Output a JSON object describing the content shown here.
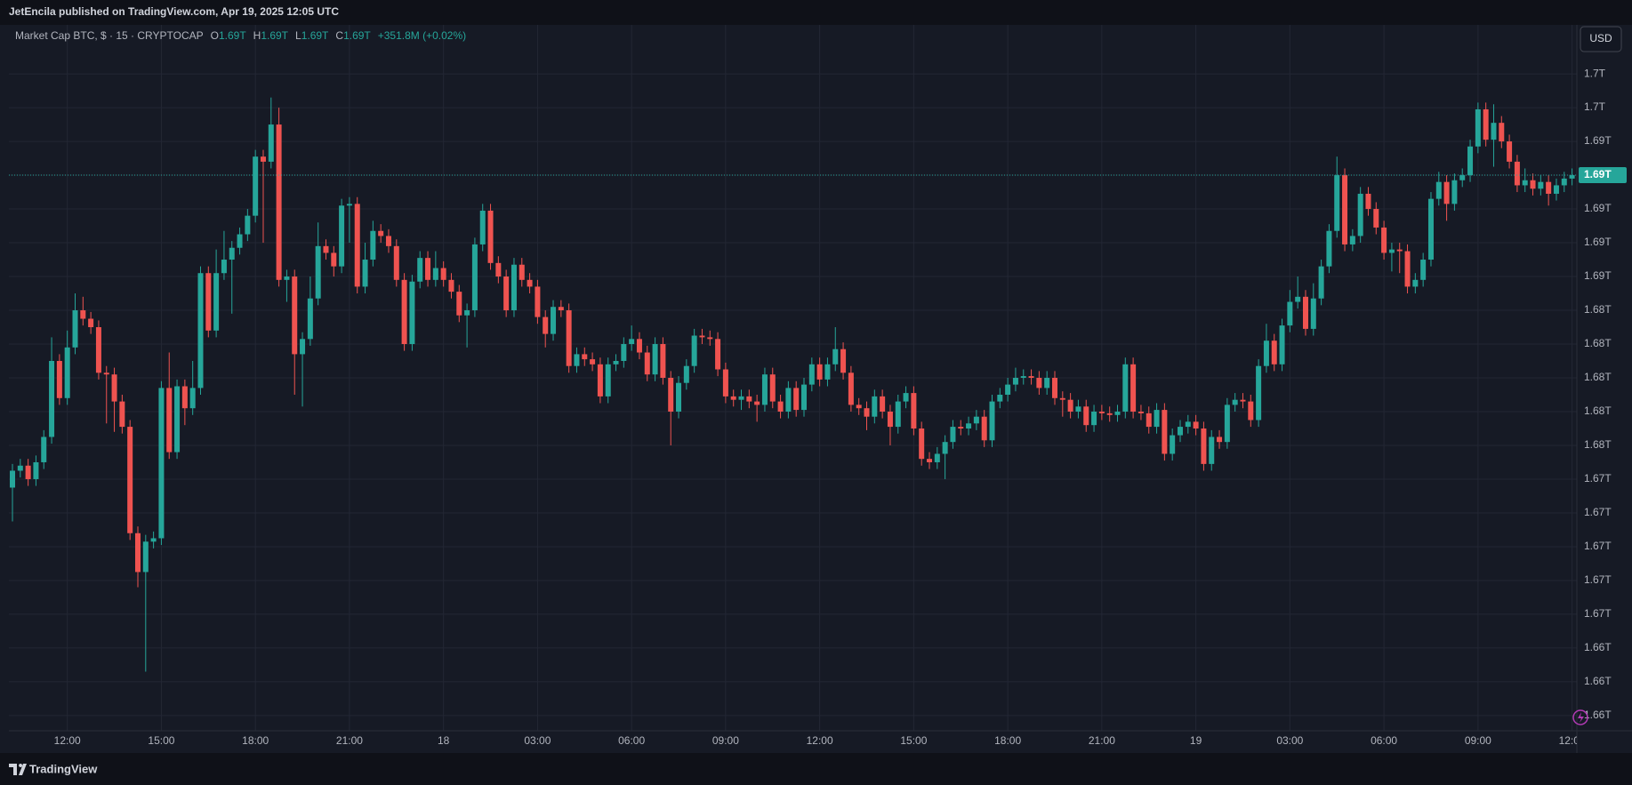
{
  "header": {
    "published": "JetEncila published on TradingView.com, Apr 19, 2025 12:05 UTC"
  },
  "footer": {
    "brand": "TradingView"
  },
  "chart_data": {
    "type": "candlestick",
    "legend": {
      "symbol": "Market Cap BTC, $ · 15 · CRYPTOCAP",
      "open_label": "O",
      "open": "1.69T",
      "high_label": "H",
      "high": "1.69T",
      "low_label": "L",
      "low": "1.69T",
      "close_label": "C",
      "close": "1.69T",
      "change": "+351.8M (+0.02%)"
    },
    "currency": "USD",
    "price_label": "1.69T",
    "up_color": "#26a69a",
    "down_color": "#ef5350",
    "grid": true,
    "ylim": [
      1.6591,
      1.7009
    ],
    "yticks": [
      {
        "value": 1.66,
        "label": "1.66T"
      },
      {
        "value": 1.662,
        "label": "1.66T"
      },
      {
        "value": 1.664,
        "label": "1.66T"
      },
      {
        "value": 1.666,
        "label": "1.67T"
      },
      {
        "value": 1.668,
        "label": "1.67T"
      },
      {
        "value": 1.67,
        "label": "1.67T"
      },
      {
        "value": 1.672,
        "label": "1.67T"
      },
      {
        "value": 1.674,
        "label": "1.67T"
      },
      {
        "value": 1.676,
        "label": "1.68T"
      },
      {
        "value": 1.678,
        "label": "1.68T"
      },
      {
        "value": 1.68,
        "label": "1.68T"
      },
      {
        "value": 1.682,
        "label": "1.68T"
      },
      {
        "value": 1.684,
        "label": "1.68T"
      },
      {
        "value": 1.686,
        "label": "1.69T"
      },
      {
        "value": 1.688,
        "label": "1.69T"
      },
      {
        "value": 1.69,
        "label": "1.69T"
      },
      {
        "value": 1.692,
        "label": "1.69T"
      },
      {
        "value": 1.694,
        "label": "1.69T"
      },
      {
        "value": 1.696,
        "label": "1.7T"
      },
      {
        "value": 1.698,
        "label": "1.7T"
      }
    ],
    "xticks": [
      {
        "value": 7,
        "label": "12:00"
      },
      {
        "value": 19,
        "label": "15:00"
      },
      {
        "value": 31,
        "label": "18:00"
      },
      {
        "value": 43,
        "label": "21:00"
      },
      {
        "value": 55,
        "label": "18"
      },
      {
        "value": 67,
        "label": "03:00"
      },
      {
        "value": 79,
        "label": "06:00"
      },
      {
        "value": 91,
        "label": "09:00"
      },
      {
        "value": 103,
        "label": "12:00"
      },
      {
        "value": 115,
        "label": "15:00"
      },
      {
        "value": 127,
        "label": "18:00"
      },
      {
        "value": 139,
        "label": "21:00"
      },
      {
        "value": 151,
        "label": "19"
      },
      {
        "value": 163,
        "label": "03:00"
      },
      {
        "value": 175,
        "label": "06:00"
      },
      {
        "value": 187,
        "label": "09:00"
      },
      {
        "value": 199,
        "label": "12:00"
      }
    ],
    "open": [
      1.6735,
      1.6745,
      1.6748,
      1.674,
      1.675,
      1.6765,
      1.681,
      1.6788,
      1.6818,
      1.684,
      1.6835,
      1.683,
      1.6803,
      1.6802,
      1.6786,
      1.6771,
      1.6708,
      1.6685,
      1.6703,
      1.6705,
      1.6794,
      1.6756,
      1.6795,
      1.6782,
      1.6794,
      1.6862,
      1.6828,
      1.6862,
      1.687,
      1.6877,
      1.6885,
      1.6896,
      1.6931,
      1.6928,
      1.695,
      1.6858,
      1.686,
      1.6814,
      1.6823,
      1.6847,
      1.6878,
      1.6874,
      1.6866,
      1.6902,
      1.6903,
      1.6854,
      1.687,
      1.6887,
      1.6884,
      1.6878,
      1.6858,
      1.682,
      1.6857,
      1.6871,
      1.6858,
      1.6865,
      1.6858,
      1.6851,
      1.6837,
      1.684,
      1.6879,
      1.6899,
      1.6868,
      1.686,
      1.684,
      1.6867,
      1.6858,
      1.6854,
      1.6836,
      1.6826,
      1.6842,
      1.684,
      1.6807,
      1.6814,
      1.6811,
      1.6808,
      1.6789,
      1.6808,
      1.681,
      1.682,
      1.6823,
      1.6815,
      1.6802,
      1.682,
      1.68,
      1.678,
      1.6797,
      1.6807,
      1.6825,
      1.6824,
      1.6823,
      1.6805,
      1.6789,
      1.6787,
      1.6789,
      1.6786,
      1.6784,
      1.6802,
      1.6786,
      1.678,
      1.6794,
      1.6781,
      1.6796,
      1.6808,
      1.6799,
      1.6808,
      1.6817,
      1.6803,
      1.6784,
      1.6782,
      1.6777,
      1.6789,
      1.678,
      1.6771,
      1.6786,
      1.6791,
      1.677,
      1.6752,
      1.675,
      1.6755,
      1.6762,
      1.6771,
      1.677,
      1.6773,
      1.6777,
      1.6763,
      1.6786,
      1.679,
      1.6796,
      1.68,
      1.6801,
      1.68,
      1.6794,
      1.68,
      1.6788,
      1.6787,
      1.678,
      1.6783,
      1.6772,
      1.678,
      1.6779,
      1.6778,
      1.678,
      1.6808,
      1.678,
      1.6779,
      1.6771,
      1.6781,
      1.6755,
      1.6766,
      1.6771,
      1.6774,
      1.677,
      1.6749,
      1.6765,
      1.6762,
      1.6784,
      1.6787,
      1.6786,
      1.6775,
      1.6807,
      1.6822,
      1.6808,
      1.6831,
      1.6845,
      1.6848,
      1.6829,
      1.6847,
      1.6866,
      1.6887,
      1.692,
      1.6879,
      1.6884,
      1.6909,
      1.69,
      1.6889,
      1.6874,
      1.6876,
      1.6875,
      1.6854,
      1.6858,
      1.687,
      1.6906,
      1.6916,
      1.6903,
      1.6917,
      1.692,
      1.6937,
      1.6959,
      1.6941,
      1.6951,
      1.694,
      1.6928,
      1.6914,
      1.6917,
      1.6912,
      1.6916,
      1.6909,
      1.6914,
      1.6918
    ],
    "high": [
      1.6749,
      1.6752,
      1.6752,
      1.6754,
      1.6769,
      1.6824,
      1.6814,
      1.6828,
      1.685,
      1.6848,
      1.6839,
      1.6834,
      1.6807,
      1.6806,
      1.679,
      1.6775,
      1.6712,
      1.6707,
      1.6709,
      1.6798,
      1.6815,
      1.6799,
      1.6799,
      1.681,
      1.6866,
      1.6866,
      1.6876,
      1.6887,
      1.6881,
      1.6889,
      1.69,
      1.6935,
      1.6935,
      1.6966,
      1.696,
      1.6864,
      1.6864,
      1.6827,
      1.686,
      1.6892,
      1.6882,
      1.6878,
      1.6906,
      1.6907,
      1.6907,
      1.688,
      1.6893,
      1.6891,
      1.6888,
      1.6882,
      1.6862,
      1.6861,
      1.6875,
      1.6875,
      1.6875,
      1.6869,
      1.6862,
      1.6855,
      1.6844,
      1.6883,
      1.6903,
      1.6903,
      1.6872,
      1.6864,
      1.6871,
      1.6871,
      1.6862,
      1.6858,
      1.684,
      1.6846,
      1.6846,
      1.6844,
      1.6818,
      1.6818,
      1.6815,
      1.6812,
      1.6812,
      1.6814,
      1.6824,
      1.6831,
      1.6827,
      1.6819,
      1.6824,
      1.6824,
      1.6804,
      1.6801,
      1.6811,
      1.6829,
      1.6829,
      1.6828,
      1.6827,
      1.6809,
      1.6793,
      1.6793,
      1.6793,
      1.679,
      1.6806,
      1.6806,
      1.679,
      1.6798,
      1.6798,
      1.68,
      1.6812,
      1.6812,
      1.6812,
      1.683,
      1.6821,
      1.6807,
      1.6788,
      1.6786,
      1.6793,
      1.6793,
      1.6784,
      1.679,
      1.6795,
      1.6795,
      1.6774,
      1.6756,
      1.6759,
      1.6766,
      1.6775,
      1.6775,
      1.6777,
      1.6781,
      1.6781,
      1.679,
      1.6794,
      1.68,
      1.6806,
      1.6805,
      1.6805,
      1.6804,
      1.6804,
      1.6804,
      1.6792,
      1.6791,
      1.6787,
      1.6787,
      1.6784,
      1.6784,
      1.6783,
      1.6784,
      1.6812,
      1.6812,
      1.6784,
      1.6783,
      1.6785,
      1.6785,
      1.677,
      1.6775,
      1.6778,
      1.6778,
      1.6774,
      1.6769,
      1.6769,
      1.6788,
      1.6791,
      1.6791,
      1.679,
      1.6811,
      1.6832,
      1.6826,
      1.6835,
      1.6852,
      1.686,
      1.6852,
      1.6856,
      1.687,
      1.6891,
      1.6931,
      1.6924,
      1.6888,
      1.6913,
      1.6913,
      1.6904,
      1.6893,
      1.688,
      1.688,
      1.6879,
      1.6862,
      1.6874,
      1.691,
      1.6922,
      1.692,
      1.6921,
      1.6924,
      1.6941,
      1.6963,
      1.6963,
      1.6962,
      1.6955,
      1.6944,
      1.6932,
      1.6924,
      1.6921,
      1.692,
      1.692,
      1.6918,
      1.6922,
      1.6924
    ],
    "low": [
      1.6715,
      1.6741,
      1.6736,
      1.6736,
      1.6746,
      1.6761,
      1.6784,
      1.6784,
      1.6814,
      1.6831,
      1.6826,
      1.6799,
      1.6773,
      1.6768,
      1.6767,
      1.6704,
      1.6676,
      1.6626,
      1.6699,
      1.6701,
      1.6752,
      1.6752,
      1.6772,
      1.6778,
      1.679,
      1.6824,
      1.6824,
      1.6858,
      1.6838,
      1.6873,
      1.6881,
      1.6892,
      1.688,
      1.6924,
      1.6854,
      1.6845,
      1.679,
      1.6783,
      1.6819,
      1.6843,
      1.687,
      1.686,
      1.6862,
      1.688,
      1.685,
      1.685,
      1.6866,
      1.688,
      1.6874,
      1.6854,
      1.6816,
      1.6816,
      1.6853,
      1.6854,
      1.6854,
      1.6854,
      1.6847,
      1.6833,
      1.6818,
      1.6836,
      1.6875,
      1.6864,
      1.6856,
      1.6836,
      1.6836,
      1.6854,
      1.685,
      1.6832,
      1.6818,
      1.6822,
      1.6836,
      1.6803,
      1.6803,
      1.6807,
      1.6804,
      1.6785,
      1.6785,
      1.6804,
      1.6806,
      1.6816,
      1.6811,
      1.6798,
      1.6798,
      1.6796,
      1.676,
      1.6776,
      1.6793,
      1.6803,
      1.682,
      1.6819,
      1.6801,
      1.6785,
      1.6783,
      1.6781,
      1.6782,
      1.6774,
      1.678,
      1.6782,
      1.6776,
      1.6776,
      1.6777,
      1.6777,
      1.6792,
      1.6795,
      1.6795,
      1.6804,
      1.6799,
      1.678,
      1.6778,
      1.6769,
      1.6773,
      1.6776,
      1.676,
      1.6767,
      1.6782,
      1.6766,
      1.6748,
      1.6746,
      1.6746,
      1.674,
      1.6758,
      1.6766,
      1.6766,
      1.6769,
      1.6759,
      1.6759,
      1.6782,
      1.6786,
      1.6792,
      1.6796,
      1.6796,
      1.679,
      1.679,
      1.6784,
      1.6777,
      1.6776,
      1.6776,
      1.6768,
      1.6768,
      1.6775,
      1.6774,
      1.6774,
      1.6776,
      1.6776,
      1.6775,
      1.6767,
      1.6767,
      1.6751,
      1.6751,
      1.6762,
      1.6767,
      1.6766,
      1.6745,
      1.6745,
      1.6758,
      1.6758,
      1.678,
      1.6782,
      1.6771,
      1.6771,
      1.6803,
      1.6804,
      1.6804,
      1.6827,
      1.6841,
      1.6825,
      1.6825,
      1.6843,
      1.6862,
      1.6883,
      1.6875,
      1.6875,
      1.688,
      1.6896,
      1.6885,
      1.687,
      1.6863,
      1.6862,
      1.685,
      1.685,
      1.6854,
      1.6866,
      1.6902,
      1.6893,
      1.6899,
      1.6913,
      1.6916,
      1.6933,
      1.6937,
      1.6925,
      1.6936,
      1.6924,
      1.691,
      1.691,
      1.6908,
      1.6908,
      1.6902,
      1.6905,
      1.691,
      1.6914
    ],
    "close": [
      1.6745,
      1.6748,
      1.674,
      1.675,
      1.6765,
      1.681,
      1.6788,
      1.6818,
      1.684,
      1.6835,
      1.683,
      1.6803,
      1.6802,
      1.6786,
      1.6771,
      1.6708,
      1.6685,
      1.6703,
      1.6705,
      1.6794,
      1.6756,
      1.6795,
      1.6782,
      1.6794,
      1.6862,
      1.6828,
      1.6862,
      1.687,
      1.6877,
      1.6885,
      1.6896,
      1.6931,
      1.6928,
      1.695,
      1.6858,
      1.686,
      1.6814,
      1.6823,
      1.6847,
      1.6878,
      1.6874,
      1.6866,
      1.6902,
      1.6903,
      1.6854,
      1.687,
      1.6887,
      1.6884,
      1.6878,
      1.6858,
      1.682,
      1.6857,
      1.6871,
      1.6858,
      1.6865,
      1.6858,
      1.6851,
      1.6837,
      1.684,
      1.6879,
      1.6899,
      1.6868,
      1.686,
      1.684,
      1.6867,
      1.6858,
      1.6854,
      1.6836,
      1.6826,
      1.6842,
      1.684,
      1.6807,
      1.6814,
      1.6811,
      1.6808,
      1.6789,
      1.6808,
      1.681,
      1.682,
      1.6823,
      1.6815,
      1.6802,
      1.682,
      1.68,
      1.678,
      1.6797,
      1.6807,
      1.6825,
      1.6824,
      1.6823,
      1.6805,
      1.6789,
      1.6787,
      1.6789,
      1.6786,
      1.6784,
      1.6802,
      1.6786,
      1.678,
      1.6794,
      1.6781,
      1.6796,
      1.6808,
      1.6799,
      1.6808,
      1.6817,
      1.6803,
      1.6784,
      1.6782,
      1.6777,
      1.6789,
      1.678,
      1.6771,
      1.6786,
      1.6791,
      1.677,
      1.6752,
      1.675,
      1.6755,
      1.6762,
      1.6771,
      1.677,
      1.6773,
      1.6777,
      1.6763,
      1.6786,
      1.679,
      1.6796,
      1.68,
      1.6801,
      1.68,
      1.6794,
      1.68,
      1.6788,
      1.6787,
      1.678,
      1.6783,
      1.6772,
      1.678,
      1.6779,
      1.6778,
      1.678,
      1.6808,
      1.678,
      1.6779,
      1.6771,
      1.6781,
      1.6755,
      1.6766,
      1.6771,
      1.6774,
      1.677,
      1.6749,
      1.6765,
      1.6762,
      1.6784,
      1.6787,
      1.6786,
      1.6775,
      1.6807,
      1.6822,
      1.6808,
      1.6831,
      1.6845,
      1.6848,
      1.6829,
      1.6847,
      1.6866,
      1.6887,
      1.692,
      1.6879,
      1.6884,
      1.6909,
      1.69,
      1.6889,
      1.6874,
      1.6876,
      1.6875,
      1.6854,
      1.6858,
      1.687,
      1.6906,
      1.6916,
      1.6903,
      1.6917,
      1.692,
      1.6937,
      1.6959,
      1.6941,
      1.6951,
      1.694,
      1.6928,
      1.6914,
      1.6917,
      1.6912,
      1.6916,
      1.6909,
      1.6914,
      1.6918,
      1.692
    ]
  }
}
